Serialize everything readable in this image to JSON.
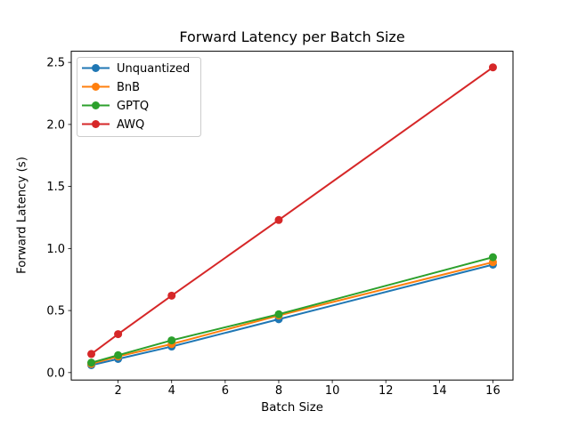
{
  "chart_data": {
    "type": "line",
    "title": "Forward Latency per Batch Size",
    "xlabel": "Batch Size",
    "ylabel": "Forward Latency (s)",
    "x": [
      1,
      2,
      4,
      8,
      16
    ],
    "series": [
      {
        "name": "Unquantized",
        "color": "#1f77b4",
        "values": [
          0.06,
          0.11,
          0.21,
          0.43,
          0.87
        ]
      },
      {
        "name": "BnB",
        "color": "#ff7f0e",
        "values": [
          0.07,
          0.13,
          0.23,
          0.46,
          0.89
        ]
      },
      {
        "name": "GPTQ",
        "color": "#2ca02c",
        "values": [
          0.08,
          0.14,
          0.26,
          0.47,
          0.93
        ]
      },
      {
        "name": "AWQ",
        "color": "#d62728",
        "values": [
          0.15,
          0.31,
          0.62,
          1.23,
          2.46
        ]
      }
    ],
    "xlim": [
      0.25,
      16.75
    ],
    "ylim": [
      -0.06,
      2.59
    ],
    "xticks": [
      "2",
      "4",
      "6",
      "8",
      "10",
      "12",
      "14",
      "16"
    ],
    "yticks": [
      "0.0",
      "0.5",
      "1.0",
      "1.5",
      "2.0",
      "2.5"
    ],
    "grid": false,
    "legend_position": "upper left",
    "marker": "o",
    "axis_color": "#000000",
    "legend_border_color": "#cccccc",
    "background_color": "#ffffff"
  }
}
